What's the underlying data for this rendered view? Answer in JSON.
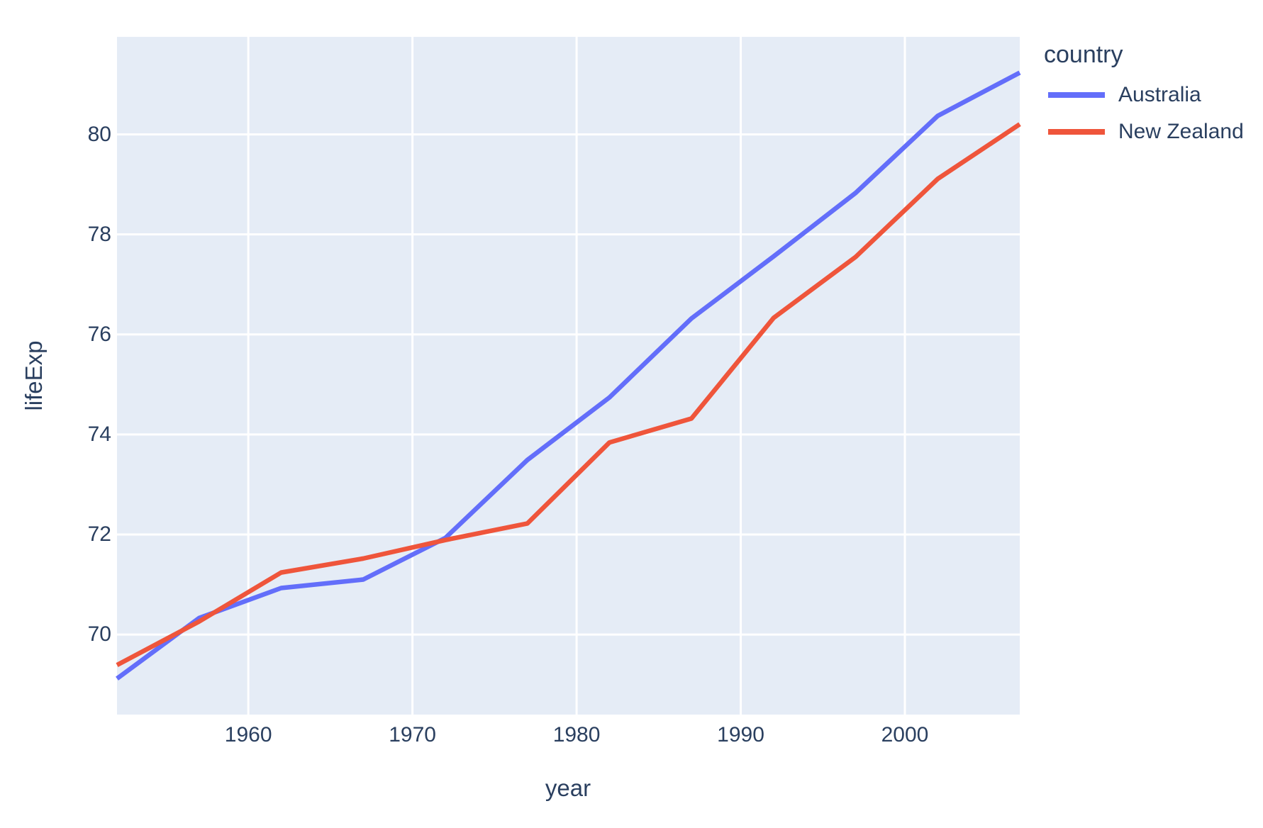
{
  "chart_data": {
    "type": "line",
    "title": "",
    "xlabel": "year",
    "ylabel": "lifeExp",
    "legend_title": "country",
    "legend_position": "top-right-outside",
    "grid": true,
    "x": [
      1952,
      1957,
      1962,
      1967,
      1972,
      1977,
      1982,
      1987,
      1992,
      1997,
      2002,
      2007
    ],
    "series": [
      {
        "name": "Australia",
        "color": "#636EFA",
        "values": [
          69.12,
          70.33,
          70.93,
          71.1,
          71.93,
          73.49,
          74.74,
          76.32,
          77.56,
          78.83,
          80.37,
          81.235
        ]
      },
      {
        "name": "New Zealand",
        "color": "#EF553B",
        "values": [
          69.39,
          70.26,
          71.24,
          71.52,
          71.89,
          72.22,
          73.84,
          74.32,
          76.33,
          77.55,
          79.11,
          80.204
        ]
      }
    ],
    "x_ticks": [
      1960,
      1970,
      1980,
      1990,
      2000
    ],
    "y_ticks": [
      70,
      72,
      74,
      76,
      78,
      80
    ],
    "x_range": [
      1952,
      2007
    ],
    "y_range": [
      68.4,
      81.95
    ],
    "colors": {
      "plot_background": "#E5ECF6",
      "paper_background": "#FFFFFF",
      "gridline": "#FFFFFF",
      "text": "#2A3F5F"
    }
  }
}
